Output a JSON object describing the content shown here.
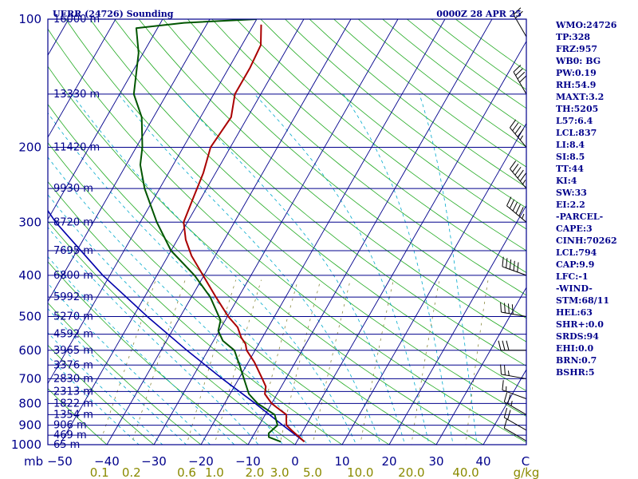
{
  "header": {
    "station_title": "UERR (24726) Sounding",
    "time_label": "0000Z 28 APR 25"
  },
  "indices": [
    "WMO:24726",
    "TP:328",
    "FRZ:957",
    "WB0: BG",
    "PW:0.19",
    "RH:54.9",
    "MAXT:3.2",
    "TH:5205",
    "L57:6.4",
    "LCL:837",
    "LI:8.4",
    "SI:8.5",
    "TT:44",
    "KI:4",
    "SW:33",
    "EI:2.2",
    "-PARCEL-",
    "CAPE:3",
    "CINH:70262",
    "LCL:794",
    "CAP:9.9",
    "LFC:-1",
    "-WIND-",
    "STM:68/11",
    "HEL:63",
    "SHR+:0.0",
    "SRDS:94",
    "EHI:0.0",
    "BRN:0.7",
    "BSHR:5"
  ],
  "colors": {
    "frame": "#00008b",
    "isobar": "#00008b",
    "isotherm": "#00008b",
    "dry_adiabat": "#22aa22",
    "moist_adiabat": "#00aacc",
    "mixing_ratio": "#8a8a40",
    "temperature": "#aa0000",
    "dewpoint": "#005500",
    "parcel": "#0000aa",
    "wind_barb": "#000000"
  },
  "chart_data": {
    "type": "skew-t",
    "pressure_levels": [
      100,
      200,
      300,
      400,
      500,
      600,
      700,
      800,
      900,
      1000
    ],
    "height_labels": [
      {
        "p": 100,
        "label": "16000 m"
      },
      {
        "p": 150,
        "label": "13330 m"
      },
      {
        "p": 200,
        "label": "11420 m"
      },
      {
        "p": 250,
        "label": "9930 m"
      },
      {
        "p": 300,
        "label": "8720 m"
      },
      {
        "p": 350,
        "label": "7695 m"
      },
      {
        "p": 400,
        "label": "6800 m"
      },
      {
        "p": 450,
        "label": "5992 m"
      },
      {
        "p": 500,
        "label": "5270 m"
      },
      {
        "p": 550,
        "label": "4592 m"
      },
      {
        "p": 600,
        "label": "3965 m"
      },
      {
        "p": 650,
        "label": "3376 m"
      },
      {
        "p": 700,
        "label": "2830 m"
      },
      {
        "p": 750,
        "label": "2313 m"
      },
      {
        "p": 800,
        "label": "1822 m"
      },
      {
        "p": 850,
        "label": "1354 m"
      },
      {
        "p": 900,
        "label": "906 m"
      },
      {
        "p": 950,
        "label": "469 m"
      },
      {
        "p": 1000,
        "label": "65 m"
      }
    ],
    "x_axis_unit_label": "mb",
    "temperature_ticks": [
      -50,
      -40,
      -30,
      -20,
      -10,
      0,
      10,
      20,
      30,
      40
    ],
    "temperature_tick_labels": [
      "−50",
      "−40",
      "−30",
      "−20",
      "−10",
      "0",
      "10",
      "20",
      "30",
      "40"
    ],
    "mixing_ratio_ticks": [
      0.1,
      0.2,
      0.6,
      1.0,
      2.0,
      3.0,
      5.0,
      10.0,
      20.0,
      40.0
    ],
    "mixing_ratio_tick_labels": [
      "0.1",
      "0.2",
      "0.6",
      "1.0",
      "2.0",
      "3.0",
      "5.0",
      "10.0",
      "20.0",
      "40.0"
    ],
    "mixing_ratio_unit": "g/kg",
    "temperature_right_label": "C",
    "temperature_profile": [
      {
        "p": 984,
        "t": 1.6
      },
      {
        "p": 960,
        "t": 0.0
      },
      {
        "p": 925,
        "t": -2.5
      },
      {
        "p": 900,
        "t": -4.2
      },
      {
        "p": 870,
        "t": -5.0
      },
      {
        "p": 850,
        "t": -5.5
      },
      {
        "p": 820,
        "t": -8.2
      },
      {
        "p": 800,
        "t": -10.0
      },
      {
        "p": 760,
        "t": -12.6
      },
      {
        "p": 730,
        "t": -13.3
      },
      {
        "p": 700,
        "t": -15.0
      },
      {
        "p": 640,
        "t": -18.7
      },
      {
        "p": 600,
        "t": -21.8
      },
      {
        "p": 580,
        "t": -22.8
      },
      {
        "p": 560,
        "t": -24.5
      },
      {
        "p": 530,
        "t": -26.5
      },
      {
        "p": 500,
        "t": -29.8
      },
      {
        "p": 450,
        "t": -34.8
      },
      {
        "p": 400,
        "t": -40.2
      },
      {
        "p": 360,
        "t": -45.0
      },
      {
        "p": 330,
        "t": -48.2
      },
      {
        "p": 300,
        "t": -50.8
      },
      {
        "p": 260,
        "t": -51.8
      },
      {
        "p": 230,
        "t": -52.6
      },
      {
        "p": 200,
        "t": -54.2
      },
      {
        "p": 170,
        "t": -53.5
      },
      {
        "p": 150,
        "t": -55.5
      },
      {
        "p": 130,
        "t": -55.5
      },
      {
        "p": 115,
        "t": -56.0
      },
      {
        "p": 103,
        "t": -58.4
      }
    ],
    "dewpoint_profile": [
      {
        "p": 984,
        "td": -3.4
      },
      {
        "p": 960,
        "td": -6.5
      },
      {
        "p": 940,
        "td": -7.0
      },
      {
        "p": 900,
        "td": -6.1
      },
      {
        "p": 850,
        "td": -8.0
      },
      {
        "p": 800,
        "td": -13.0
      },
      {
        "p": 760,
        "td": -16.0
      },
      {
        "p": 700,
        "td": -18.9
      },
      {
        "p": 650,
        "td": -21.5
      },
      {
        "p": 600,
        "td": -24.4
      },
      {
        "p": 570,
        "td": -28.0
      },
      {
        "p": 540,
        "td": -30.2
      },
      {
        "p": 510,
        "td": -31.0
      },
      {
        "p": 500,
        "td": -31.8
      },
      {
        "p": 450,
        "td": -36.0
      },
      {
        "p": 400,
        "td": -42.0
      },
      {
        "p": 350,
        "td": -50.0
      },
      {
        "p": 300,
        "td": -56.5
      },
      {
        "p": 250,
        "td": -63.2
      },
      {
        "p": 220,
        "td": -67.0
      },
      {
        "p": 200,
        "td": -68.7
      },
      {
        "p": 170,
        "td": -72.5
      },
      {
        "p": 150,
        "td": -77.0
      },
      {
        "p": 120,
        "td": -81.0
      },
      {
        "p": 105,
        "td": -84.5
      },
      {
        "p": 102,
        "td": -75.0
      },
      {
        "p": 100,
        "td": -60.0
      }
    ],
    "parcel_path": [
      {
        "p": 984,
        "t": 1.6
      },
      {
        "p": 900,
        "t": -5.0
      },
      {
        "p": 800,
        "t": -13.5
      },
      {
        "p": 700,
        "t": -23.5
      },
      {
        "p": 600,
        "t": -34.5
      },
      {
        "p": 500,
        "t": -47.0
      },
      {
        "p": 400,
        "t": -61.5
      },
      {
        "p": 300,
        "t": -78.0
      },
      {
        "p": 200,
        "t": -98.0
      },
      {
        "p": 150,
        "t": -110.0
      },
      {
        "p": 115,
        "t": -118.0
      }
    ],
    "wind_barbs": [
      {
        "p": 980,
        "dir": 300,
        "spd": 10
      },
      {
        "p": 925,
        "dir": 300,
        "spd": 20
      },
      {
        "p": 850,
        "dir": 300,
        "spd": 25
      },
      {
        "p": 780,
        "dir": 290,
        "spd": 15
      },
      {
        "p": 700,
        "dir": 280,
        "spd": 25
      },
      {
        "p": 600,
        "dir": 270,
        "spd": 30
      },
      {
        "p": 500,
        "dir": 280,
        "spd": 40
      },
      {
        "p": 400,
        "dir": 290,
        "spd": 50
      },
      {
        "p": 300,
        "dir": 310,
        "spd": 55
      },
      {
        "p": 250,
        "dir": 320,
        "spd": 55
      },
      {
        "p": 200,
        "dir": 320,
        "spd": 45
      },
      {
        "p": 150,
        "dir": 330,
        "spd": 40
      },
      {
        "p": 110,
        "dir": 330,
        "spd": 20
      }
    ]
  }
}
